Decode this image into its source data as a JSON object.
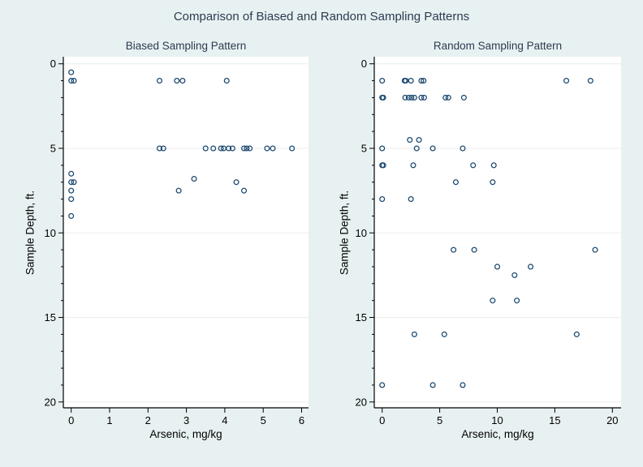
{
  "title": "Comparison of Biased and Random Sampling Patterns",
  "colors": {
    "background": "#e8f1f1",
    "plot_background": "#ffffff",
    "grid": "#ebeeeb",
    "axis": "#000000",
    "marker": "#1a476f",
    "title_text": "#2b3b52"
  },
  "chart_data": [
    {
      "type": "scatter",
      "title": "Biased Sampling Pattern",
      "xlabel": "Arsenic, mg/kg",
      "ylabel": "Sample Depth, ft.",
      "xlim": [
        0,
        6
      ],
      "ylim": [
        0,
        20
      ],
      "y_inverted": true,
      "xticks": [
        0,
        1,
        2,
        3,
        4,
        5,
        6
      ],
      "yticks": [
        0,
        5,
        10,
        15,
        20
      ],
      "y_minor_unit": 1,
      "grid": "horizontal",
      "legend": "none",
      "marker": "hollow-circle",
      "marker_color": "#1a476f",
      "points": [
        [
          0,
          0.5
        ],
        [
          0,
          1
        ],
        [
          0.07,
          1
        ],
        [
          2.3,
          1
        ],
        [
          2.75,
          1
        ],
        [
          2.9,
          1
        ],
        [
          4.05,
          1
        ],
        [
          2.3,
          5
        ],
        [
          2.4,
          5
        ],
        [
          3.5,
          5
        ],
        [
          3.7,
          5
        ],
        [
          3.9,
          5
        ],
        [
          3.97,
          5
        ],
        [
          4.1,
          5
        ],
        [
          4.2,
          5
        ],
        [
          4.5,
          5
        ],
        [
          4.57,
          5
        ],
        [
          4.65,
          5
        ],
        [
          5.1,
          5
        ],
        [
          5.25,
          5
        ],
        [
          5.75,
          5
        ],
        [
          0,
          6.5
        ],
        [
          3.2,
          6.8
        ],
        [
          0,
          7
        ],
        [
          0.07,
          7
        ],
        [
          4.3,
          7
        ],
        [
          0,
          7.5
        ],
        [
          2.8,
          7.5
        ],
        [
          4.5,
          7.5
        ],
        [
          0,
          8
        ],
        [
          0,
          9
        ]
      ]
    },
    {
      "type": "scatter",
      "title": "Random Sampling Pattern",
      "xlabel": "Arsenic, mg/kg",
      "ylabel": "Sample Depth, ft.",
      "xlim": [
        0,
        20
      ],
      "ylim": [
        0,
        20
      ],
      "y_inverted": true,
      "xticks": [
        0,
        5,
        10,
        15,
        20
      ],
      "yticks": [
        0,
        5,
        10,
        15,
        20
      ],
      "y_minor_unit": 1,
      "grid": "horizontal",
      "legend": "none",
      "marker": "hollow-circle",
      "marker_color": "#1a476f",
      "points": [
        [
          0,
          1
        ],
        [
          1.95,
          1
        ],
        [
          2.05,
          1
        ],
        [
          2.5,
          1
        ],
        [
          3.4,
          1
        ],
        [
          3.6,
          1
        ],
        [
          16,
          1
        ],
        [
          18.1,
          1
        ],
        [
          0,
          2
        ],
        [
          0.1,
          2
        ],
        [
          2.0,
          2
        ],
        [
          2.3,
          2
        ],
        [
          2.55,
          2
        ],
        [
          2.8,
          2
        ],
        [
          3.4,
          2
        ],
        [
          3.65,
          2
        ],
        [
          5.5,
          2
        ],
        [
          5.75,
          2
        ],
        [
          7.1,
          2
        ],
        [
          2.4,
          4.5
        ],
        [
          3.2,
          4.5
        ],
        [
          0,
          5
        ],
        [
          3.0,
          5
        ],
        [
          4.4,
          5
        ],
        [
          7.0,
          5
        ],
        [
          0,
          6
        ],
        [
          0.1,
          6
        ],
        [
          2.7,
          6
        ],
        [
          7.9,
          6
        ],
        [
          9.7,
          6
        ],
        [
          6.4,
          7
        ],
        [
          9.6,
          7
        ],
        [
          0,
          8
        ],
        [
          2.5,
          8
        ],
        [
          6.2,
          11
        ],
        [
          8.0,
          11
        ],
        [
          18.5,
          11
        ],
        [
          10,
          12
        ],
        [
          12.9,
          12
        ],
        [
          11.5,
          12.5
        ],
        [
          9.6,
          14
        ],
        [
          11.7,
          14
        ],
        [
          2.8,
          16
        ],
        [
          5.4,
          16
        ],
        [
          16.9,
          16
        ],
        [
          0,
          19
        ],
        [
          4.4,
          19
        ],
        [
          7.0,
          19
        ]
      ]
    }
  ]
}
